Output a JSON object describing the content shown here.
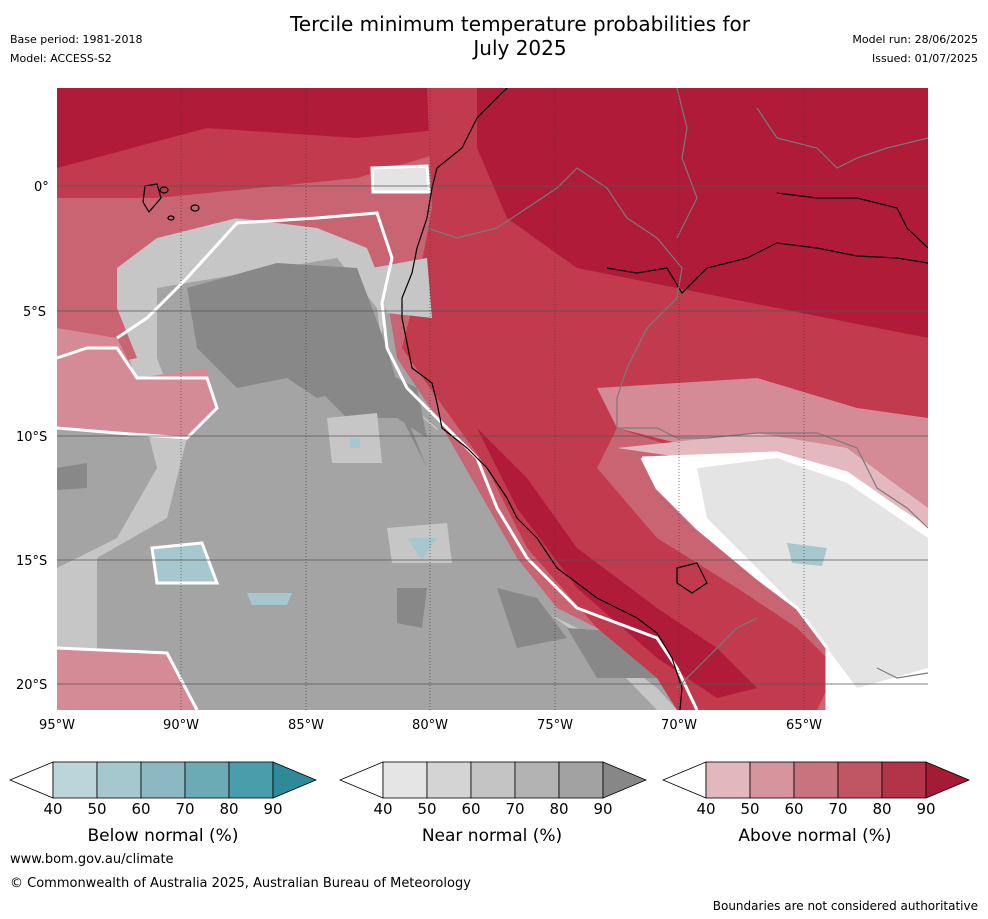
{
  "header": {
    "base_period": "Base period: 1981-2018",
    "model": "Model: ACCESS-S2",
    "title_line1": "Tercile minimum temperature probabilities for",
    "title_line2": "July 2025",
    "model_run": "Model run: 28/06/2025",
    "issued": "Issued: 01/07/2025"
  },
  "map": {
    "lat_labels": [
      "0°",
      "5°S",
      "10°S",
      "15°S",
      "20°S"
    ],
    "lon_labels": [
      "95°W",
      "90°W",
      "85°W",
      "80°W",
      "75°W",
      "70°W",
      "65°W"
    ],
    "colors": {
      "ocean_gray_dark": "#888888",
      "ocean_gray": "#a4a4a4",
      "ocean_gray_light": "#c6c6c6",
      "red_darkest": "#b01b3a",
      "red_dark": "#c23a4e",
      "red_mid": "#c96473",
      "red_light": "#d48b95",
      "red_lightest": "#e3b9bf",
      "blue_light": "#a7c7ce"
    }
  },
  "colorbars": [
    {
      "label": "Below normal (%)",
      "ticks": [
        "40",
        "50",
        "60",
        "70",
        "80",
        "90"
      ],
      "colors": [
        "#ffffff",
        "#bcd5da",
        "#a5c8ce",
        "#8bb8c2",
        "#6caab6",
        "#4a9dab",
        "#2e8a9b"
      ]
    },
    {
      "label": "Near normal (%)",
      "ticks": [
        "40",
        "50",
        "60",
        "70",
        "80",
        "90"
      ],
      "colors": [
        "#ffffff",
        "#e5e5e5",
        "#d4d4d4",
        "#c4c4c4",
        "#b3b3b3",
        "#a2a2a2",
        "#878787"
      ]
    },
    {
      "label": "Above normal (%)",
      "ticks": [
        "40",
        "50",
        "60",
        "70",
        "80",
        "90"
      ],
      "colors": [
        "#ffffff",
        "#e2b8bd",
        "#d5949c",
        "#c9737e",
        "#c05563",
        "#b33449",
        "#a71a36"
      ]
    }
  ],
  "footer": {
    "url": "www.bom.gov.au/climate",
    "copyright": "© Commonwealth of Australia 2025, Australian Bureau of Meteorology",
    "disclaimer": "Boundaries are not considered authoritative"
  }
}
